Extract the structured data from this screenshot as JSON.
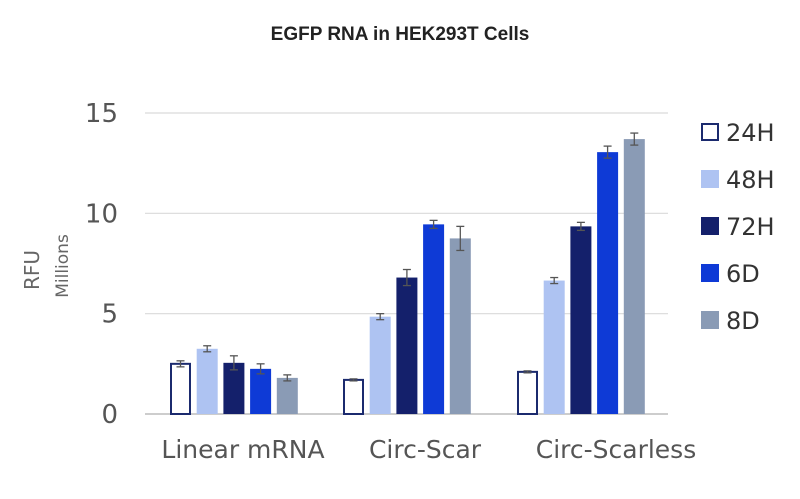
{
  "chart_data": {
    "type": "bar",
    "title": "EGFP RNA in HEK293T Cells",
    "ylabel": "RFU",
    "yunit": "Millions",
    "categories": [
      "Linear mRNA",
      "Circ-Scar",
      "Circ-Scarless"
    ],
    "ylim": [
      0,
      15
    ],
    "yticks": [
      "0",
      "5",
      "10",
      "15"
    ],
    "legend_position": "right",
    "gridlines": true,
    "series": [
      {
        "name": "24H",
        "color": "#ffffff",
        "stroke": "#1b2a6e",
        "values": [
          2.5,
          1.7,
          2.1
        ],
        "errors": [
          0.15,
          0.05,
          0.05
        ]
      },
      {
        "name": "48H",
        "color": "#aec3f2",
        "stroke": "none",
        "values": [
          3.25,
          4.85,
          6.65
        ],
        "errors": [
          0.15,
          0.15,
          0.15
        ]
      },
      {
        "name": "72H",
        "color": "#14206b",
        "stroke": "none",
        "values": [
          2.55,
          6.8,
          9.35
        ],
        "errors": [
          0.35,
          0.4,
          0.2
        ]
      },
      {
        "name": "6D",
        "color": "#0e3ad6",
        "stroke": "none",
        "values": [
          2.25,
          9.45,
          13.05
        ],
        "errors": [
          0.25,
          0.2,
          0.3
        ]
      },
      {
        "name": "8D",
        "color": "#8a9bb5",
        "stroke": "none",
        "values": [
          1.8,
          8.75,
          13.7
        ],
        "errors": [
          0.15,
          0.6,
          0.3
        ]
      }
    ]
  }
}
